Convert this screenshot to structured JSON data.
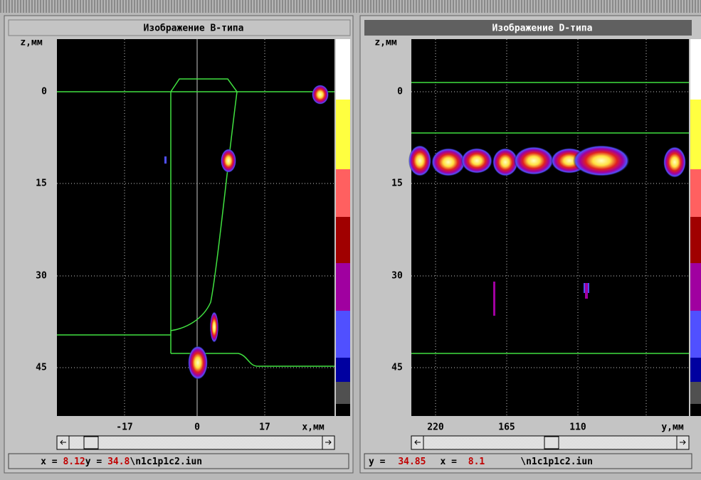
{
  "windows": [
    {
      "title": "Изображение B-типа",
      "axis_y_label": "z,мм",
      "y_ticks": [
        "0",
        "15",
        "30",
        "45"
      ],
      "x_ticks": [
        "-17",
        "0",
        "17"
      ],
      "axis_x_label": "x,мм",
      "status": {
        "label_1": "x = ",
        "value_1": "8.12",
        "label_2": "y = ",
        "value_2": "34.8",
        "file": "\\n1c1p1c2.iun"
      }
    },
    {
      "title": "Изображение D-типа",
      "axis_y_label": "z,мм",
      "y_ticks": [
        "0",
        "15",
        "30",
        "45"
      ],
      "x_ticks": [
        "220",
        "165",
        "110"
      ],
      "axis_x_label": "y,мм",
      "status": {
        "label_1": "y = ",
        "value_1": "34.85",
        "label_2": "x = ",
        "value_2": "8.1",
        "file": "\\n1c1p1c2.iun"
      }
    }
  ]
}
